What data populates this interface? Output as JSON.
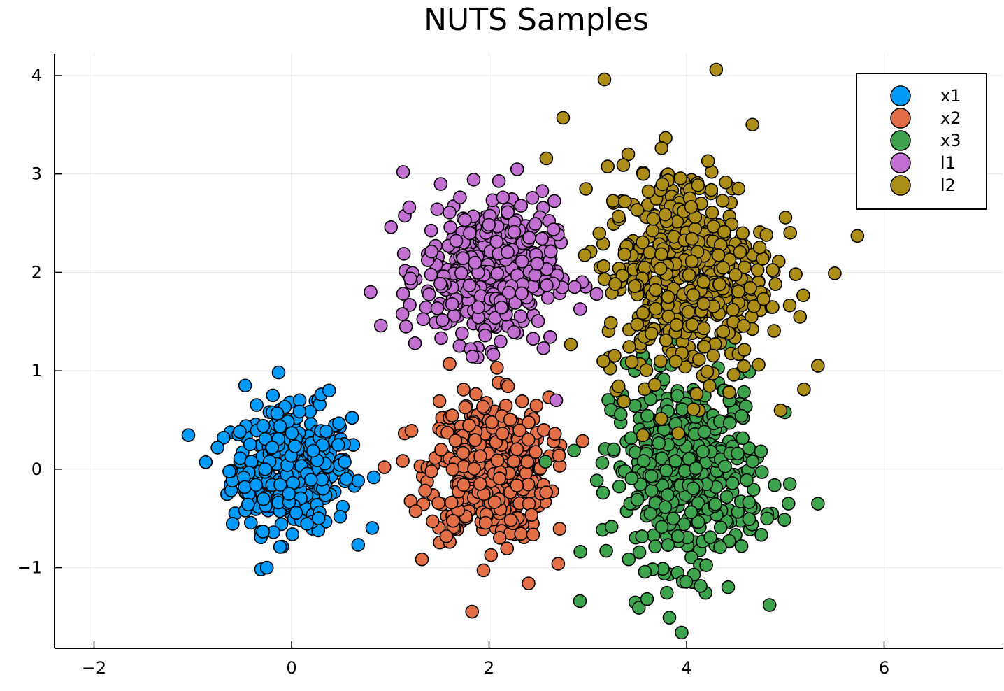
{
  "chart_data": {
    "type": "scatter",
    "title": "NUTS Samples",
    "xlabel": "",
    "ylabel": "",
    "xlim": [
      -2.4,
      7.2
    ],
    "ylim": [
      -1.82,
      4.22
    ],
    "xticks": [
      -2,
      0,
      2,
      4,
      6
    ],
    "xtick_labels": [
      "−2",
      "0",
      "2",
      "4",
      "6"
    ],
    "yticks": [
      -1,
      0,
      1,
      2,
      3,
      4
    ],
    "ytick_labels": [
      "−1",
      "0",
      "1",
      "2",
      "3",
      "4"
    ],
    "grid": true,
    "legend_position": "top-right",
    "series": [
      {
        "name": "x1",
        "color": "#009AFA",
        "center": [
          0.0,
          0.0
        ],
        "spread": [
          0.3,
          0.3
        ],
        "n": 400,
        "outliers": [
          [
            -0.25,
            -1.0
          ],
          [
            0.3,
            0.76
          ],
          [
            0.38,
            0.8
          ],
          [
            -0.47,
            0.85
          ],
          [
            -0.75,
            0.22
          ]
        ]
      },
      {
        "name": "x2",
        "color": "#E26F46",
        "center": [
          2.0,
          0.0
        ],
        "spread": [
          0.3,
          0.36
        ],
        "n": 420,
        "outliers": [
          [
            2.4,
            -1.16
          ],
          [
            2.7,
            -0.96
          ],
          [
            1.6,
            1.07
          ],
          [
            2.08,
            1.03
          ],
          [
            0.94,
            0.02
          ]
        ]
      },
      {
        "name": "x3",
        "color": "#3DA44D",
        "center": [
          4.0,
          0.0
        ],
        "spread": [
          0.38,
          0.48
        ],
        "n": 450,
        "outliers": [
          [
            3.95,
            -1.66
          ],
          [
            4.84,
            -1.38
          ],
          [
            2.92,
            -1.34
          ],
          [
            5.33,
            -0.35
          ],
          [
            3.6,
            -1.32
          ]
        ]
      },
      {
        "name": "l1",
        "color": "#C271D2",
        "center": [
          2.0,
          2.0
        ],
        "spread": [
          0.33,
          0.36
        ],
        "n": 420,
        "outliers": [
          [
            1.13,
            3.02
          ],
          [
            0.8,
            1.8
          ],
          [
            3.09,
            1.78
          ],
          [
            1.25,
            1.28
          ],
          [
            2.68,
            0.7
          ]
        ]
      },
      {
        "name": "l2",
        "color": "#AC8D18",
        "center": [
          4.0,
          2.0
        ],
        "spread": [
          0.42,
          0.55
        ],
        "n": 500,
        "outliers": [
          [
            4.3,
            4.06
          ],
          [
            5.73,
            2.37
          ],
          [
            5.5,
            1.99
          ],
          [
            2.75,
            3.57
          ],
          [
            5.33,
            1.05
          ]
        ]
      }
    ]
  }
}
